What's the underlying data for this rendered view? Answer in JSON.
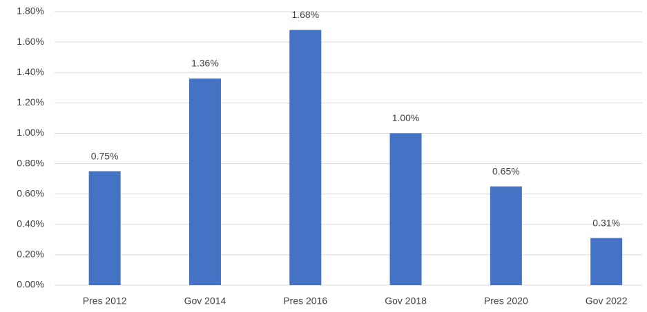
{
  "chart_data": {
    "type": "bar",
    "categories": [
      "Pres 2012",
      "Gov 2014",
      "Pres 2016",
      "Gov 2018",
      "Pres 2020",
      "Gov 2022"
    ],
    "values": [
      0.75,
      1.36,
      1.68,
      1.0,
      0.65,
      0.31
    ],
    "value_labels": [
      "0.75%",
      "1.36%",
      "1.68%",
      "1.00%",
      "0.65%",
      "0.31%"
    ],
    "color": "#4472c4",
    "ylim": [
      0,
      1.8
    ],
    "yticks": [
      {
        "value": 0,
        "label": "0.00%"
      },
      {
        "value": 0.2,
        "label": "0.20%"
      },
      {
        "value": 0.4,
        "label": "0.40%"
      },
      {
        "value": 0.6,
        "label": "0.60%"
      },
      {
        "value": 0.8,
        "label": "0.80%"
      },
      {
        "value": 1.0,
        "label": "1.00%"
      },
      {
        "value": 1.2,
        "label": "1.20%"
      },
      {
        "value": 1.4,
        "label": "1.40%"
      },
      {
        "value": 1.6,
        "label": "1.60%"
      },
      {
        "value": 1.8,
        "label": "1.80%"
      }
    ],
    "grid": true
  }
}
